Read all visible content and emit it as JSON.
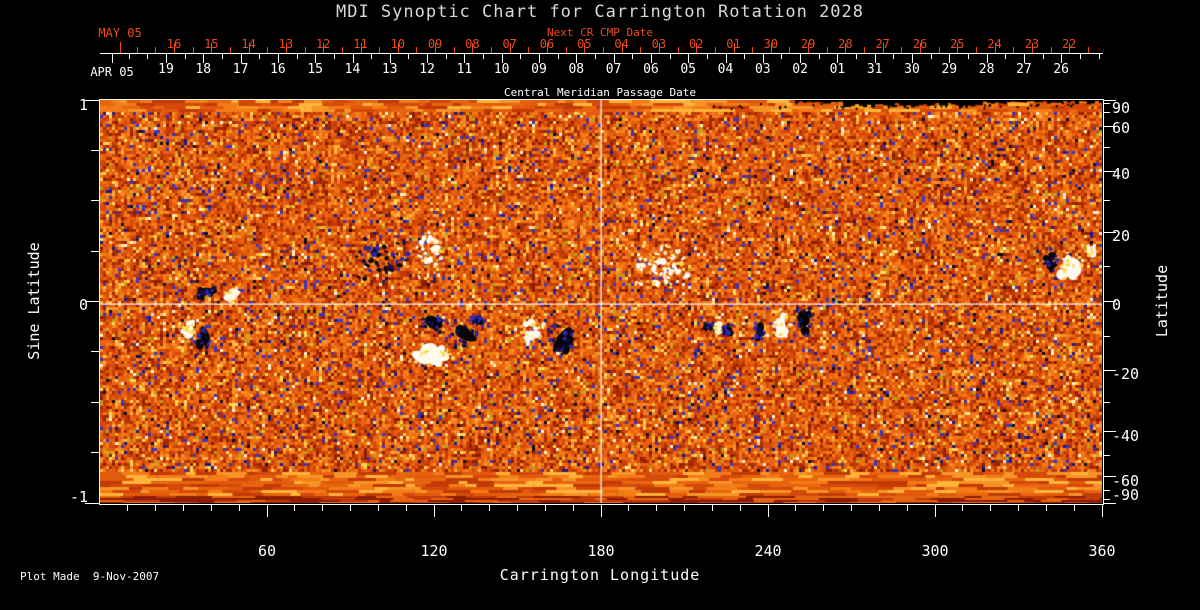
{
  "title": "MDI Synoptic Chart for Carrington Rotation 2028",
  "footer": "Plot Made  9-Nov-2007",
  "colors": {
    "background": "#000000",
    "axis_white": "#ffffff",
    "axis_red": "#ee4a1c",
    "title_text": "#d9d9d9",
    "crosshair": "#ffffff",
    "negative_polarity": "#060606",
    "positive_polarity": "#fffdf2",
    "negative_fringe": [
      "#2b28b4",
      "#11104e"
    ],
    "positive_fringe": [
      "#ffd84e",
      "#fff6d8"
    ]
  },
  "chart_data": {
    "type": "heatmap",
    "title": "MDI Synoptic Chart for Carrington Rotation 2028",
    "xlabel": "Carrington Longitude",
    "ylabel_left": "Sine Latitude",
    "ylabel_right": "Latitude",
    "xlim": [
      0,
      360
    ],
    "ylim_sine_latitude": [
      -1,
      1
    ],
    "x_major_ticks": [
      "60",
      "120",
      "180",
      "240",
      "300",
      "360"
    ],
    "x_minor_tick_step_deg": 10,
    "sine_latitude_labeled_ticks": [
      "1",
      "0",
      "-1"
    ],
    "sine_latitude_minor_step": 0.25,
    "latitude_labeled_ticks": [
      "90",
      "60",
      "40",
      "20",
      "0",
      "-20",
      "-40",
      "-60",
      "-90"
    ],
    "latitude_minor_step_deg": 10,
    "top_axis_red": {
      "title": "Next CR CMP Date",
      "month_label": "MAY 05",
      "day_labels": [
        "16",
        "15",
        "14",
        "13",
        "12",
        "11",
        "10",
        "09",
        "08",
        "07",
        "06",
        "05",
        "04",
        "03",
        "02",
        "01",
        "30",
        "29",
        "28",
        "27",
        "26",
        "25",
        "24",
        "23",
        "22"
      ]
    },
    "top_axis_white": {
      "title": "Central Meridian Passage Date",
      "month_label": "APR 05",
      "day_labels": [
        "19",
        "18",
        "17",
        "16",
        "15",
        "14",
        "13",
        "12",
        "11",
        "10",
        "09",
        "08",
        "07",
        "06",
        "05",
        "04",
        "03",
        "02",
        "01",
        "31",
        "30",
        "29",
        "28",
        "27",
        "26"
      ]
    },
    "crosshair": {
      "longitude_deg": 180,
      "sine_latitude": 0
    },
    "colormap": "magnetogram: orange-red mottle, white/yellow positive flux, black/navy-blue negative flux",
    "palette": [
      [
        "#e8650f",
        16
      ],
      [
        "#f47b16",
        13
      ],
      [
        "#d6490a",
        14
      ],
      [
        "#c23a06",
        12
      ],
      [
        "#a52a03",
        9
      ],
      [
        "#8c1d01",
        5
      ],
      [
        "#f79426",
        7
      ],
      [
        "#ffb43a",
        4
      ],
      [
        "#ffd75a",
        3
      ],
      [
        "#fff3cf",
        1.2
      ],
      [
        "#3a35c0",
        2.8
      ],
      [
        "#1b1a86",
        1.4
      ],
      [
        "#0a0a28",
        1.0
      ],
      [
        "#b8a018",
        1.6
      ],
      [
        "#e25a0c",
        8
      ]
    ],
    "polar_data_gap": {
      "edge": "north",
      "lon_start_deg": 250,
      "lon_end_deg": 360
    },
    "active_regions": [
      {
        "lon": 37.7,
        "sinlat": 0.04,
        "w_deg": 7.2,
        "h_sin": 0.06,
        "polarity": "negative",
        "style": "blob"
      },
      {
        "lon": 47.1,
        "sinlat": 0.027,
        "w_deg": 5.0,
        "h_sin": 0.055,
        "polarity": "positive",
        "style": "blob"
      },
      {
        "lon": 31.6,
        "sinlat": -0.127,
        "w_deg": 5.7,
        "h_sin": 0.1,
        "polarity": "positive",
        "style": "blob"
      },
      {
        "lon": 36.6,
        "sinlat": -0.2,
        "w_deg": 5.0,
        "h_sin": 0.15,
        "polarity": "negative",
        "style": "blob"
      },
      {
        "lon": 101.0,
        "sinlat": 0.22,
        "w_deg": 18.0,
        "h_sin": 0.2,
        "polarity": "negative",
        "style": "speckle"
      },
      {
        "lon": 119.0,
        "sinlat": 0.23,
        "w_deg": 12.0,
        "h_sin": 0.22,
        "polarity": "positive",
        "style": "speckle"
      },
      {
        "lon": 121.0,
        "sinlat": -0.107,
        "w_deg": 9.3,
        "h_sin": 0.08,
        "polarity": "negative",
        "style": "blob"
      },
      {
        "lon": 130.0,
        "sinlat": -0.171,
        "w_deg": 10.8,
        "h_sin": 0.09,
        "polarity": "negative",
        "style": "blob"
      },
      {
        "lon": 135.8,
        "sinlat": -0.092,
        "w_deg": 5.0,
        "h_sin": 0.05,
        "polarity": "negative",
        "style": "blob"
      },
      {
        "lon": 118.6,
        "sinlat": -0.27,
        "w_deg": 15.8,
        "h_sin": 0.1,
        "polarity": "positive",
        "style": "blob"
      },
      {
        "lon": 155.2,
        "sinlat": -0.136,
        "w_deg": 9.3,
        "h_sin": 0.12,
        "polarity": "positive",
        "style": "blob"
      },
      {
        "lon": 166.0,
        "sinlat": -0.196,
        "w_deg": 9.3,
        "h_sin": 0.17,
        "polarity": "negative",
        "style": "blob"
      },
      {
        "lon": 201.9,
        "sinlat": 0.166,
        "w_deg": 19.8,
        "h_sin": 0.22,
        "polarity": "positive",
        "style": "speckle"
      },
      {
        "lon": 219.5,
        "sinlat": -0.127,
        "w_deg": 4.7,
        "h_sin": 0.06,
        "polarity": "negative",
        "style": "blob"
      },
      {
        "lon": 222.4,
        "sinlat": -0.127,
        "w_deg": 2.9,
        "h_sin": 0.045,
        "polarity": "positive",
        "style": "blob"
      },
      {
        "lon": 225.6,
        "sinlat": -0.136,
        "w_deg": 4.0,
        "h_sin": 0.05,
        "polarity": "negative",
        "style": "blob"
      },
      {
        "lon": 237.0,
        "sinlat": -0.151,
        "w_deg": 4.0,
        "h_sin": 0.08,
        "polarity": "negative",
        "style": "blob"
      },
      {
        "lon": 244.7,
        "sinlat": -0.112,
        "w_deg": 7.9,
        "h_sin": 0.14,
        "polarity": "positive",
        "style": "blob"
      },
      {
        "lon": 252.9,
        "sinlat": -0.102,
        "w_deg": 7.9,
        "h_sin": 0.13,
        "polarity": "negative",
        "style": "blob"
      },
      {
        "lon": 342.0,
        "sinlat": 0.196,
        "w_deg": 5.4,
        "h_sin": 0.13,
        "polarity": "negative",
        "style": "blob"
      },
      {
        "lon": 348.1,
        "sinlat": 0.176,
        "w_deg": 7.9,
        "h_sin": 0.14,
        "polarity": "positive",
        "style": "blob"
      },
      {
        "lon": 355.6,
        "sinlat": 0.251,
        "w_deg": 3.6,
        "h_sin": 0.045,
        "polarity": "positive",
        "style": "blob"
      }
    ],
    "plot_made": "9-Nov-2007"
  }
}
